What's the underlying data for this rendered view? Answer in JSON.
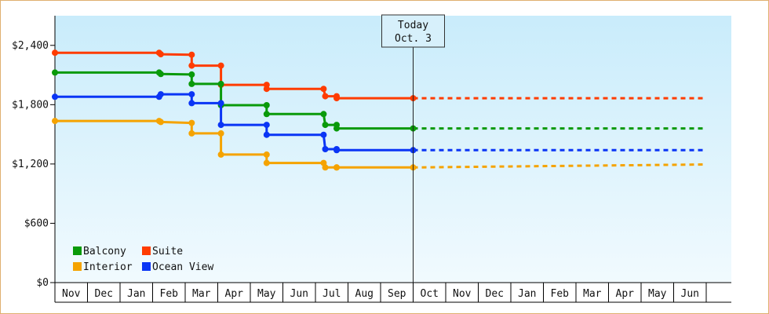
{
  "chart_data": {
    "type": "line",
    "ylim": [
      0,
      2700
    ],
    "y_ticks": [
      {
        "value": 0,
        "label": "$0"
      },
      {
        "value": 600,
        "label": "$600"
      },
      {
        "value": 1200,
        "label": "$1,200"
      },
      {
        "value": 1800,
        "label": "$1,800"
      },
      {
        "value": 2400,
        "label": "$2,400"
      }
    ],
    "x_months": [
      "Nov",
      "Dec",
      "Jan",
      "Feb",
      "Mar",
      "Apr",
      "May",
      "Jun",
      "Jul",
      "Aug",
      "Sep",
      "Oct",
      "Nov",
      "Dec",
      "Jan",
      "Feb",
      "Mar",
      "Apr",
      "May",
      "Jun"
    ],
    "today": {
      "line1": "Today",
      "line2": "Oct. 3",
      "month_pos": 11.0
    },
    "legend": [
      {
        "name": "Balcony",
        "color": "#0a9a0a"
      },
      {
        "name": "Suite",
        "color": "#ff3c00"
      },
      {
        "name": "Interior",
        "color": "#f5a300"
      },
      {
        "name": "Ocean View",
        "color": "#0a35f5"
      }
    ],
    "series": [
      {
        "name": "Suite",
        "color": "#ff3c00",
        "points": [
          [
            0.0,
            2325
          ],
          [
            3.2,
            2325
          ],
          [
            3.25,
            2310
          ],
          [
            4.2,
            2305
          ],
          [
            4.2,
            2195
          ],
          [
            5.1,
            2195
          ],
          [
            5.1,
            2000
          ],
          [
            6.5,
            2000
          ],
          [
            6.5,
            1960
          ],
          [
            8.25,
            1960
          ],
          [
            8.3,
            1885
          ],
          [
            8.65,
            1885
          ],
          [
            8.65,
            1865
          ],
          [
            11.0,
            1865
          ]
        ],
        "forecast": [
          [
            11.0,
            1865
          ],
          [
            20.0,
            1865
          ]
        ]
      },
      {
        "name": "Balcony",
        "color": "#0a9a0a",
        "points": [
          [
            0.0,
            2125
          ],
          [
            3.2,
            2125
          ],
          [
            3.25,
            2110
          ],
          [
            4.2,
            2105
          ],
          [
            4.2,
            2010
          ],
          [
            5.1,
            2010
          ],
          [
            5.1,
            1795
          ],
          [
            6.5,
            1795
          ],
          [
            6.5,
            1705
          ],
          [
            8.25,
            1705
          ],
          [
            8.3,
            1595
          ],
          [
            8.65,
            1595
          ],
          [
            8.65,
            1560
          ],
          [
            11.0,
            1560
          ]
        ],
        "forecast": [
          [
            11.0,
            1560
          ],
          [
            20.0,
            1560
          ]
        ]
      },
      {
        "name": "Ocean View",
        "color": "#0a35f5",
        "points": [
          [
            0.0,
            1880
          ],
          [
            3.2,
            1880
          ],
          [
            3.25,
            1905
          ],
          [
            4.2,
            1905
          ],
          [
            4.2,
            1815
          ],
          [
            5.1,
            1815
          ],
          [
            5.1,
            1595
          ],
          [
            6.5,
            1595
          ],
          [
            6.5,
            1495
          ],
          [
            8.25,
            1495
          ],
          [
            8.3,
            1350
          ],
          [
            8.65,
            1350
          ],
          [
            8.65,
            1340
          ],
          [
            11.0,
            1340
          ]
        ],
        "forecast": [
          [
            11.0,
            1340
          ],
          [
            20.0,
            1340
          ]
        ]
      },
      {
        "name": "Interior",
        "color": "#f5a300",
        "points": [
          [
            0.0,
            1635
          ],
          [
            3.2,
            1635
          ],
          [
            3.25,
            1625
          ],
          [
            4.2,
            1615
          ],
          [
            4.2,
            1510
          ],
          [
            5.1,
            1510
          ],
          [
            5.1,
            1295
          ],
          [
            6.5,
            1295
          ],
          [
            6.5,
            1210
          ],
          [
            8.25,
            1210
          ],
          [
            8.3,
            1165
          ],
          [
            8.65,
            1165
          ],
          [
            8.65,
            1165
          ],
          [
            11.0,
            1165
          ]
        ],
        "forecast": [
          [
            11.0,
            1165
          ],
          [
            20.0,
            1195
          ]
        ]
      }
    ]
  }
}
